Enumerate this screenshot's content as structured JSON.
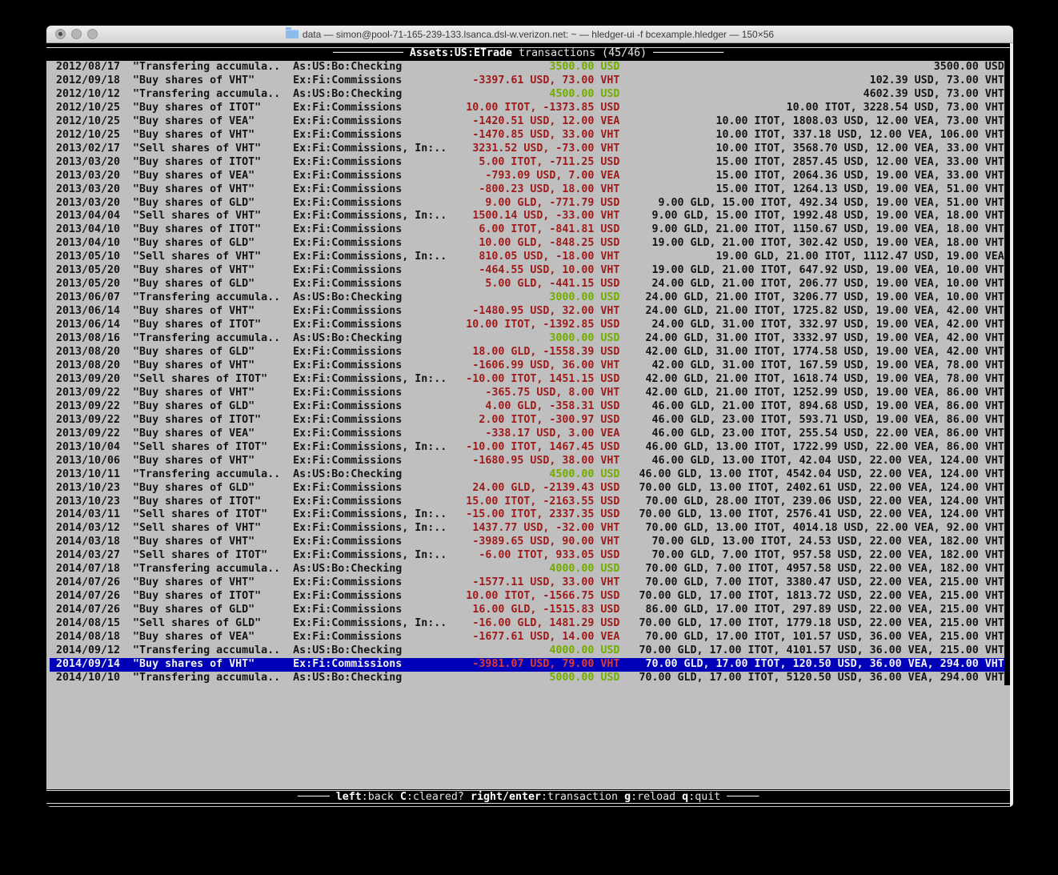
{
  "window": {
    "title": "data — simon@pool-71-165-239-133.lsanca.dsl-w.verizon.net: ~ — hledger-ui -f bcexample.hledger — 150×56"
  },
  "header": {
    "account": "Assets:US:ETrade",
    "rest": " transactions (45/46)",
    "left_rule": "─────────── ",
    "right_rule": " ───────────"
  },
  "footer": {
    "left_rule": "───── ",
    "right_rule": " ─────",
    "hints": [
      {
        "key": "left",
        "label": "back"
      },
      {
        "key": "C",
        "label": "cleared?"
      },
      {
        "key": "right/enter",
        "label": "transaction"
      },
      {
        "key": "g",
        "label": "reload"
      },
      {
        "key": "q",
        "label": "quit"
      }
    ]
  },
  "colors": {
    "terminal_bg": "#bfbfbf",
    "bar_bg": "#000000",
    "text": "#141414",
    "negative_amount": "#9c1a1a",
    "positive_amount": "#73ac00",
    "selected_bg": "#0000b8",
    "selected_text": "#f2f2f2"
  },
  "transactions": [
    {
      "date": "2012/08/17",
      "description": "\"Transfering accumula..",
      "account": "As:US:Bo:Checking",
      "change": "3500.00 USD",
      "sign": "pos",
      "balance": "3500.00 USD",
      "selected": false
    },
    {
      "date": "2012/09/18",
      "description": "\"Buy shares of VHT\"",
      "account": "Ex:Fi:Commissions",
      "change": "-3397.61 USD, 73.00 VHT",
      "sign": "neg",
      "balance": "102.39 USD, 73.00 VHT",
      "selected": false
    },
    {
      "date": "2012/10/12",
      "description": "\"Transfering accumula..",
      "account": "As:US:Bo:Checking",
      "change": "4500.00 USD",
      "sign": "pos",
      "balance": "4602.39 USD, 73.00 VHT",
      "selected": false
    },
    {
      "date": "2012/10/25",
      "description": "\"Buy shares of ITOT\"",
      "account": "Ex:Fi:Commissions",
      "change": "10.00 ITOT, -1373.85 USD",
      "sign": "neg",
      "balance": "10.00 ITOT, 3228.54 USD, 73.00 VHT",
      "selected": false
    },
    {
      "date": "2012/10/25",
      "description": "\"Buy shares of VEA\"",
      "account": "Ex:Fi:Commissions",
      "change": "-1420.51 USD, 12.00 VEA",
      "sign": "neg",
      "balance": "10.00 ITOT, 1808.03 USD, 12.00 VEA, 73.00 VHT",
      "selected": false
    },
    {
      "date": "2012/10/25",
      "description": "\"Buy shares of VHT\"",
      "account": "Ex:Fi:Commissions",
      "change": "-1470.85 USD, 33.00 VHT",
      "sign": "neg",
      "balance": "10.00 ITOT, 337.18 USD, 12.00 VEA, 106.00 VHT",
      "selected": false
    },
    {
      "date": "2013/02/17",
      "description": "\"Sell shares of VHT\"",
      "account": "Ex:Fi:Commissions, In:..",
      "change": "3231.52 USD, -73.00 VHT",
      "sign": "neg",
      "balance": "10.00 ITOT, 3568.70 USD, 12.00 VEA, 33.00 VHT",
      "selected": false
    },
    {
      "date": "2013/03/20",
      "description": "\"Buy shares of ITOT\"",
      "account": "Ex:Fi:Commissions",
      "change": "5.00 ITOT, -711.25 USD",
      "sign": "neg",
      "balance": "15.00 ITOT, 2857.45 USD, 12.00 VEA, 33.00 VHT",
      "selected": false
    },
    {
      "date": "2013/03/20",
      "description": "\"Buy shares of VEA\"",
      "account": "Ex:Fi:Commissions",
      "change": "-793.09 USD, 7.00 VEA",
      "sign": "neg",
      "balance": "15.00 ITOT, 2064.36 USD, 19.00 VEA, 33.00 VHT",
      "selected": false
    },
    {
      "date": "2013/03/20",
      "description": "\"Buy shares of VHT\"",
      "account": "Ex:Fi:Commissions",
      "change": "-800.23 USD, 18.00 VHT",
      "sign": "neg",
      "balance": "15.00 ITOT, 1264.13 USD, 19.00 VEA, 51.00 VHT",
      "selected": false
    },
    {
      "date": "2013/03/20",
      "description": "\"Buy shares of GLD\"",
      "account": "Ex:Fi:Commissions",
      "change": "9.00 GLD, -771.79 USD",
      "sign": "neg",
      "balance": "9.00 GLD, 15.00 ITOT, 492.34 USD, 19.00 VEA, 51.00 VHT",
      "selected": false
    },
    {
      "date": "2013/04/04",
      "description": "\"Sell shares of VHT\"",
      "account": "Ex:Fi:Commissions, In:..",
      "change": "1500.14 USD, -33.00 VHT",
      "sign": "neg",
      "balance": "9.00 GLD, 15.00 ITOT, 1992.48 USD, 19.00 VEA, 18.00 VHT",
      "selected": false
    },
    {
      "date": "2013/04/10",
      "description": "\"Buy shares of ITOT\"",
      "account": "Ex:Fi:Commissions",
      "change": "6.00 ITOT, -841.81 USD",
      "sign": "neg",
      "balance": "9.00 GLD, 21.00 ITOT, 1150.67 USD, 19.00 VEA, 18.00 VHT",
      "selected": false
    },
    {
      "date": "2013/04/10",
      "description": "\"Buy shares of GLD\"",
      "account": "Ex:Fi:Commissions",
      "change": "10.00 GLD, -848.25 USD",
      "sign": "neg",
      "balance": "19.00 GLD, 21.00 ITOT, 302.42 USD, 19.00 VEA, 18.00 VHT",
      "selected": false
    },
    {
      "date": "2013/05/10",
      "description": "\"Sell shares of VHT\"",
      "account": "Ex:Fi:Commissions, In:..",
      "change": "810.05 USD, -18.00 VHT",
      "sign": "neg",
      "balance": "19.00 GLD, 21.00 ITOT, 1112.47 USD, 19.00 VEA",
      "selected": false
    },
    {
      "date": "2013/05/20",
      "description": "\"Buy shares of VHT\"",
      "account": "Ex:Fi:Commissions",
      "change": "-464.55 USD, 10.00 VHT",
      "sign": "neg",
      "balance": "19.00 GLD, 21.00 ITOT, 647.92 USD, 19.00 VEA, 10.00 VHT",
      "selected": false
    },
    {
      "date": "2013/05/20",
      "description": "\"Buy shares of GLD\"",
      "account": "Ex:Fi:Commissions",
      "change": "5.00 GLD, -441.15 USD",
      "sign": "neg",
      "balance": "24.00 GLD, 21.00 ITOT, 206.77 USD, 19.00 VEA, 10.00 VHT",
      "selected": false
    },
    {
      "date": "2013/06/07",
      "description": "\"Transfering accumula..",
      "account": "As:US:Bo:Checking",
      "change": "3000.00 USD",
      "sign": "pos",
      "balance": "24.00 GLD, 21.00 ITOT, 3206.77 USD, 19.00 VEA, 10.00 VHT",
      "selected": false
    },
    {
      "date": "2013/06/14",
      "description": "\"Buy shares of VHT\"",
      "account": "Ex:Fi:Commissions",
      "change": "-1480.95 USD, 32.00 VHT",
      "sign": "neg",
      "balance": "24.00 GLD, 21.00 ITOT, 1725.82 USD, 19.00 VEA, 42.00 VHT",
      "selected": false
    },
    {
      "date": "2013/06/14",
      "description": "\"Buy shares of ITOT\"",
      "account": "Ex:Fi:Commissions",
      "change": "10.00 ITOT, -1392.85 USD",
      "sign": "neg",
      "balance": "24.00 GLD, 31.00 ITOT, 332.97 USD, 19.00 VEA, 42.00 VHT",
      "selected": false
    },
    {
      "date": "2013/08/16",
      "description": "\"Transfering accumula..",
      "account": "As:US:Bo:Checking",
      "change": "3000.00 USD",
      "sign": "pos",
      "balance": "24.00 GLD, 31.00 ITOT, 3332.97 USD, 19.00 VEA, 42.00 VHT",
      "selected": false
    },
    {
      "date": "2013/08/20",
      "description": "\"Buy shares of GLD\"",
      "account": "Ex:Fi:Commissions",
      "change": "18.00 GLD, -1558.39 USD",
      "sign": "neg",
      "balance": "42.00 GLD, 31.00 ITOT, 1774.58 USD, 19.00 VEA, 42.00 VHT",
      "selected": false
    },
    {
      "date": "2013/08/20",
      "description": "\"Buy shares of VHT\"",
      "account": "Ex:Fi:Commissions",
      "change": "-1606.99 USD, 36.00 VHT",
      "sign": "neg",
      "balance": "42.00 GLD, 31.00 ITOT, 167.59 USD, 19.00 VEA, 78.00 VHT",
      "selected": false
    },
    {
      "date": "2013/09/20",
      "description": "\"Sell shares of ITOT\"",
      "account": "Ex:Fi:Commissions, In:..",
      "change": "-10.00 ITOT, 1451.15 USD",
      "sign": "neg",
      "balance": "42.00 GLD, 21.00 ITOT, 1618.74 USD, 19.00 VEA, 78.00 VHT",
      "selected": false
    },
    {
      "date": "2013/09/22",
      "description": "\"Buy shares of VHT\"",
      "account": "Ex:Fi:Commissions",
      "change": "-365.75 USD, 8.00 VHT",
      "sign": "neg",
      "balance": "42.00 GLD, 21.00 ITOT, 1252.99 USD, 19.00 VEA, 86.00 VHT",
      "selected": false
    },
    {
      "date": "2013/09/22",
      "description": "\"Buy shares of GLD\"",
      "account": "Ex:Fi:Commissions",
      "change": "4.00 GLD, -358.31 USD",
      "sign": "neg",
      "balance": "46.00 GLD, 21.00 ITOT, 894.68 USD, 19.00 VEA, 86.00 VHT",
      "selected": false
    },
    {
      "date": "2013/09/22",
      "description": "\"Buy shares of ITOT\"",
      "account": "Ex:Fi:Commissions",
      "change": "2.00 ITOT, -300.97 USD",
      "sign": "neg",
      "balance": "46.00 GLD, 23.00 ITOT, 593.71 USD, 19.00 VEA, 86.00 VHT",
      "selected": false
    },
    {
      "date": "2013/09/22",
      "description": "\"Buy shares of VEA\"",
      "account": "Ex:Fi:Commissions",
      "change": "-338.17 USD, 3.00 VEA",
      "sign": "neg",
      "balance": "46.00 GLD, 23.00 ITOT, 255.54 USD, 22.00 VEA, 86.00 VHT",
      "selected": false
    },
    {
      "date": "2013/10/04",
      "description": "\"Sell shares of ITOT\"",
      "account": "Ex:Fi:Commissions, In:..",
      "change": "-10.00 ITOT, 1467.45 USD",
      "sign": "neg",
      "balance": "46.00 GLD, 13.00 ITOT, 1722.99 USD, 22.00 VEA, 86.00 VHT",
      "selected": false
    },
    {
      "date": "2013/10/06",
      "description": "\"Buy shares of VHT\"",
      "account": "Ex:Fi:Commissions",
      "change": "-1680.95 USD, 38.00 VHT",
      "sign": "neg",
      "balance": "46.00 GLD, 13.00 ITOT, 42.04 USD, 22.00 VEA, 124.00 VHT",
      "selected": false
    },
    {
      "date": "2013/10/11",
      "description": "\"Transfering accumula..",
      "account": "As:US:Bo:Checking",
      "change": "4500.00 USD",
      "sign": "pos",
      "balance": "46.00 GLD, 13.00 ITOT, 4542.04 USD, 22.00 VEA, 124.00 VHT",
      "selected": false
    },
    {
      "date": "2013/10/23",
      "description": "\"Buy shares of GLD\"",
      "account": "Ex:Fi:Commissions",
      "change": "24.00 GLD, -2139.43 USD",
      "sign": "neg",
      "balance": "70.00 GLD, 13.00 ITOT, 2402.61 USD, 22.00 VEA, 124.00 VHT",
      "selected": false
    },
    {
      "date": "2013/10/23",
      "description": "\"Buy shares of ITOT\"",
      "account": "Ex:Fi:Commissions",
      "change": "15.00 ITOT, -2163.55 USD",
      "sign": "neg",
      "balance": "70.00 GLD, 28.00 ITOT, 239.06 USD, 22.00 VEA, 124.00 VHT",
      "selected": false
    },
    {
      "date": "2014/03/11",
      "description": "\"Sell shares of ITOT\"",
      "account": "Ex:Fi:Commissions, In:..",
      "change": "-15.00 ITOT, 2337.35 USD",
      "sign": "neg",
      "balance": "70.00 GLD, 13.00 ITOT, 2576.41 USD, 22.00 VEA, 124.00 VHT",
      "selected": false
    },
    {
      "date": "2014/03/12",
      "description": "\"Sell shares of VHT\"",
      "account": "Ex:Fi:Commissions, In:..",
      "change": "1437.77 USD, -32.00 VHT",
      "sign": "neg",
      "balance": "70.00 GLD, 13.00 ITOT, 4014.18 USD, 22.00 VEA, 92.00 VHT",
      "selected": false
    },
    {
      "date": "2014/03/18",
      "description": "\"Buy shares of VHT\"",
      "account": "Ex:Fi:Commissions",
      "change": "-3989.65 USD, 90.00 VHT",
      "sign": "neg",
      "balance": "70.00 GLD, 13.00 ITOT, 24.53 USD, 22.00 VEA, 182.00 VHT",
      "selected": false
    },
    {
      "date": "2014/03/27",
      "description": "\"Sell shares of ITOT\"",
      "account": "Ex:Fi:Commissions, In:..",
      "change": "-6.00 ITOT, 933.05 USD",
      "sign": "neg",
      "balance": "70.00 GLD, 7.00 ITOT, 957.58 USD, 22.00 VEA, 182.00 VHT",
      "selected": false
    },
    {
      "date": "2014/07/18",
      "description": "\"Transfering accumula..",
      "account": "As:US:Bo:Checking",
      "change": "4000.00 USD",
      "sign": "pos",
      "balance": "70.00 GLD, 7.00 ITOT, 4957.58 USD, 22.00 VEA, 182.00 VHT",
      "selected": false
    },
    {
      "date": "2014/07/26",
      "description": "\"Buy shares of VHT\"",
      "account": "Ex:Fi:Commissions",
      "change": "-1577.11 USD, 33.00 VHT",
      "sign": "neg",
      "balance": "70.00 GLD, 7.00 ITOT, 3380.47 USD, 22.00 VEA, 215.00 VHT",
      "selected": false
    },
    {
      "date": "2014/07/26",
      "description": "\"Buy shares of ITOT\"",
      "account": "Ex:Fi:Commissions",
      "change": "10.00 ITOT, -1566.75 USD",
      "sign": "neg",
      "balance": "70.00 GLD, 17.00 ITOT, 1813.72 USD, 22.00 VEA, 215.00 VHT",
      "selected": false
    },
    {
      "date": "2014/07/26",
      "description": "\"Buy shares of GLD\"",
      "account": "Ex:Fi:Commissions",
      "change": "16.00 GLD, -1515.83 USD",
      "sign": "neg",
      "balance": "86.00 GLD, 17.00 ITOT, 297.89 USD, 22.00 VEA, 215.00 VHT",
      "selected": false
    },
    {
      "date": "2014/08/15",
      "description": "\"Sell shares of GLD\"",
      "account": "Ex:Fi:Commissions, In:..",
      "change": "-16.00 GLD, 1481.29 USD",
      "sign": "neg",
      "balance": "70.00 GLD, 17.00 ITOT, 1779.18 USD, 22.00 VEA, 215.00 VHT",
      "selected": false
    },
    {
      "date": "2014/08/18",
      "description": "\"Buy shares of VEA\"",
      "account": "Ex:Fi:Commissions",
      "change": "-1677.61 USD, 14.00 VEA",
      "sign": "neg",
      "balance": "70.00 GLD, 17.00 ITOT, 101.57 USD, 36.00 VEA, 215.00 VHT",
      "selected": false
    },
    {
      "date": "2014/09/12",
      "description": "\"Transfering accumula..",
      "account": "As:US:Bo:Checking",
      "change": "4000.00 USD",
      "sign": "pos",
      "balance": "70.00 GLD, 17.00 ITOT, 4101.57 USD, 36.00 VEA, 215.00 VHT",
      "selected": false
    },
    {
      "date": "2014/09/14",
      "description": "\"Buy shares of VHT\"",
      "account": "Ex:Fi:Commissions",
      "change": "-3981.07 USD, 79.00 VHT",
      "sign": "neg",
      "balance": "70.00 GLD, 17.00 ITOT, 120.50 USD, 36.00 VEA, 294.00 VHT",
      "selected": true
    },
    {
      "date": "2014/10/10",
      "description": "\"Transfering accumula..",
      "account": "As:US:Bo:Checking",
      "change": "5000.00 USD",
      "sign": "pos",
      "balance": "70.00 GLD, 17.00 ITOT, 5120.50 USD, 36.00 VEA, 294.00 VHT",
      "selected": false
    }
  ]
}
